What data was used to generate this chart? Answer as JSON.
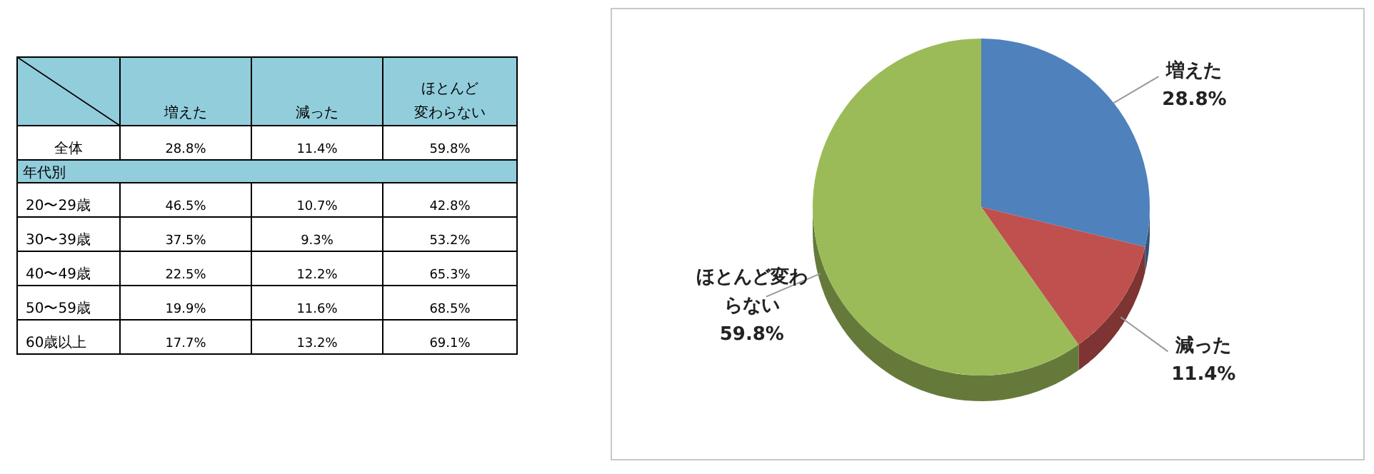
{
  "chart_data": [
    {
      "type": "other",
      "categories": [
        "増えた",
        "減った",
        "ほとんど変わらない"
      ],
      "y_categories": [
        "全体",
        "年代別",
        "20〜29歳",
        "30〜39歳",
        "40〜49歳",
        "50〜59歳",
        "60歳以上"
      ],
      "cells": [
        [
          "28.8%",
          "11.4%",
          "59.8%"
        ],
        [
          null,
          null,
          null
        ],
        [
          "46.5%",
          "10.7%",
          "42.8%"
        ],
        [
          "37.5%",
          "9.3%",
          "53.2%"
        ],
        [
          "22.5%",
          "12.2%",
          "65.3%"
        ],
        [
          "19.9%",
          "11.6%",
          "68.5%"
        ],
        [
          "17.7%",
          "13.2%",
          "69.1%"
        ]
      ]
    },
    {
      "type": "pie",
      "categories": [
        "増えた",
        "減った",
        "ほとんど変わらない"
      ],
      "values": [
        28.8,
        11.4,
        59.8
      ],
      "colors": [
        "#4f81bd",
        "#c0504d",
        "#9bbb59"
      ],
      "value_labels": [
        "28.8%",
        "11.4%",
        "59.8%"
      ]
    }
  ]
}
